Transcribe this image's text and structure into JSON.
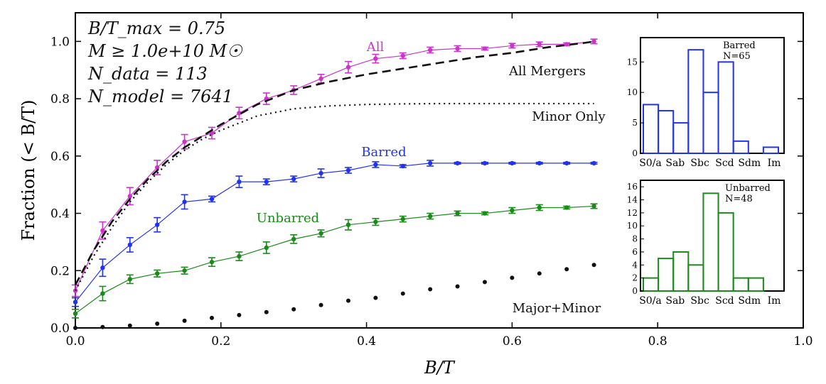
{
  "chart_data": [
    {
      "type": "line",
      "xlabel": "B/T",
      "ylabel": "Fraction (< B/T)",
      "xlim": [
        0.0,
        1.0
      ],
      "ylim": [
        0.0,
        1.1
      ],
      "xticks": [
        "0.0",
        "0.2",
        "0.4",
        "0.6",
        "0.8",
        "1.0"
      ],
      "yticks": [
        "0.0",
        "0.2",
        "0.4",
        "0.6",
        "0.8",
        "1.0"
      ],
      "annotation_lines": [
        "B/T_max = 0.75",
        "M ≥ 1.0e+10 M☉",
        "N_data = 113",
        "N_model = 7641"
      ],
      "series_labels": {
        "all": "All",
        "barred": "Barred",
        "unbarred": "Unbarred",
        "all_mergers": "All Mergers",
        "minor_only": "Minor Only",
        "major_minor": "Major+Minor"
      },
      "colors": {
        "all": "#cc33cc",
        "barred": "#2233ee",
        "unbarred": "#1a8a1a",
        "model": "#111111"
      },
      "x": [
        0.0,
        0.0375,
        0.075,
        0.1125,
        0.15,
        0.1875,
        0.225,
        0.2625,
        0.3,
        0.3375,
        0.375,
        0.4125,
        0.45,
        0.4875,
        0.525,
        0.5625,
        0.6,
        0.6375,
        0.675,
        0.7125
      ],
      "series": [
        {
          "name": "All",
          "style": "line+errorbar",
          "values": [
            0.13,
            0.34,
            0.46,
            0.56,
            0.65,
            0.68,
            0.75,
            0.8,
            0.83,
            0.87,
            0.91,
            0.94,
            0.95,
            0.97,
            0.975,
            0.975,
            0.985,
            0.99,
            0.99,
            1.0
          ],
          "err": [
            0.02,
            0.03,
            0.03,
            0.025,
            0.025,
            0.02,
            0.02,
            0.02,
            0.015,
            0.015,
            0.02,
            0.015,
            0.01,
            0.01,
            0.01,
            0.005,
            0.008,
            0.008,
            0.005,
            0.008
          ]
        },
        {
          "name": "Barred",
          "style": "line+errorbar",
          "values": [
            0.09,
            0.21,
            0.29,
            0.36,
            0.44,
            0.45,
            0.51,
            0.51,
            0.52,
            0.54,
            0.55,
            0.57,
            0.565,
            0.575,
            0.575,
            0.575,
            0.575,
            0.575,
            0.575,
            0.575
          ],
          "err": [
            0.015,
            0.03,
            0.025,
            0.025,
            0.025,
            0.01,
            0.02,
            0.01,
            0.01,
            0.015,
            0.01,
            0.01,
            0.005,
            0.01,
            0.003,
            0.003,
            0.003,
            0.003,
            0.003,
            0.003
          ]
        },
        {
          "name": "Unbarred",
          "style": "line+errorbar",
          "values": [
            0.05,
            0.12,
            0.17,
            0.19,
            0.2,
            0.23,
            0.25,
            0.28,
            0.31,
            0.33,
            0.36,
            0.37,
            0.38,
            0.39,
            0.4,
            0.4,
            0.41,
            0.42,
            0.42,
            0.425
          ],
          "err": [
            0.015,
            0.025,
            0.015,
            0.012,
            0.012,
            0.015,
            0.015,
            0.02,
            0.015,
            0.012,
            0.018,
            0.012,
            0.01,
            0.01,
            0.008,
            0.005,
            0.01,
            0.01,
            0.005,
            0.008
          ]
        },
        {
          "name": "All Mergers",
          "style": "dashed",
          "x": [
            0.0,
            0.025,
            0.05,
            0.075,
            0.1,
            0.125,
            0.15,
            0.175,
            0.2,
            0.25,
            0.3,
            0.35,
            0.4,
            0.45,
            0.5,
            0.55,
            0.6,
            0.65,
            0.7,
            0.7125
          ],
          "values": [
            0.15,
            0.27,
            0.37,
            0.45,
            0.52,
            0.58,
            0.63,
            0.67,
            0.71,
            0.78,
            0.83,
            0.86,
            0.885,
            0.905,
            0.925,
            0.945,
            0.96,
            0.98,
            0.995,
            1.0
          ]
        },
        {
          "name": "Minor Only",
          "style": "dotted",
          "x": [
            0.0,
            0.025,
            0.05,
            0.075,
            0.1,
            0.125,
            0.15,
            0.175,
            0.2,
            0.25,
            0.3,
            0.35,
            0.4,
            0.45,
            0.5,
            0.6,
            0.7125
          ],
          "values": [
            0.13,
            0.25,
            0.35,
            0.44,
            0.51,
            0.57,
            0.62,
            0.66,
            0.69,
            0.74,
            0.765,
            0.775,
            0.78,
            0.782,
            0.783,
            0.783,
            0.783
          ]
        },
        {
          "name": "Major+Minor",
          "style": "points",
          "values": [
            0.0,
            0.003,
            0.008,
            0.015,
            0.025,
            0.035,
            0.045,
            0.055,
            0.065,
            0.08,
            0.095,
            0.105,
            0.12,
            0.135,
            0.145,
            0.16,
            0.175,
            0.19,
            0.205,
            0.22
          ]
        }
      ]
    },
    {
      "type": "bar",
      "title": "Barred",
      "subtitle": "N=65",
      "color": "#2233ee",
      "categories": [
        "S0/a",
        "Sab",
        "Sbc",
        "Scd",
        "Sdm",
        "Im"
      ],
      "bin_values": [
        8,
        7,
        5,
        17,
        10,
        15,
        2,
        0,
        1
      ],
      "yticks": [
        "0",
        "5",
        "10",
        "15"
      ],
      "ylim": [
        0,
        19
      ]
    },
    {
      "type": "bar",
      "title": "Unbarred",
      "subtitle": "N=48",
      "color": "#1a8a1a",
      "categories": [
        "S0/a",
        "Sab",
        "Sbc",
        "Scd",
        "Sdm",
        "Im"
      ],
      "bin_values": [
        2,
        5,
        6,
        4,
        15,
        12,
        2,
        2,
        0
      ],
      "yticks": [
        "0",
        "2",
        "4",
        "6",
        "8",
        "10",
        "12",
        "14",
        "16"
      ],
      "ylim": [
        0,
        17
      ]
    }
  ]
}
